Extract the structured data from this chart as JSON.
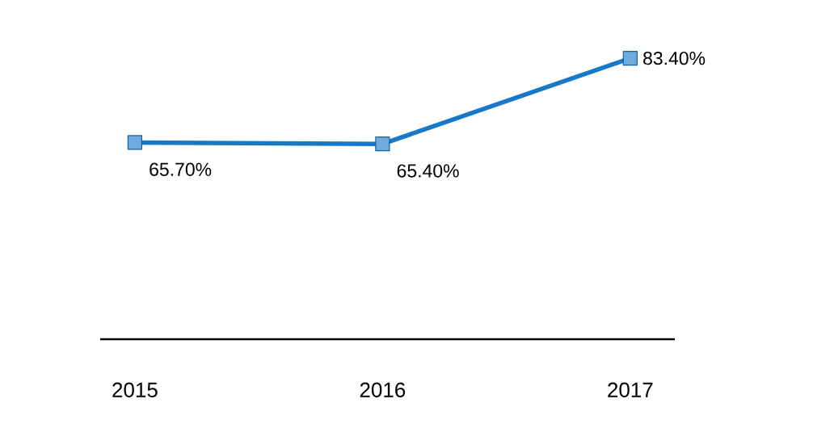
{
  "chart_data": {
    "type": "line",
    "categories": [
      "2015",
      "2016",
      "2017"
    ],
    "series": [
      {
        "color": "#1878c8",
        "values": [
          65.7,
          65.4,
          83.4
        ],
        "value_labels": [
          "65.70%",
          "65.40%",
          "83.40%"
        ]
      }
    ],
    "marker": "square",
    "line_style": "solid",
    "tick_labels": "x"
  }
}
